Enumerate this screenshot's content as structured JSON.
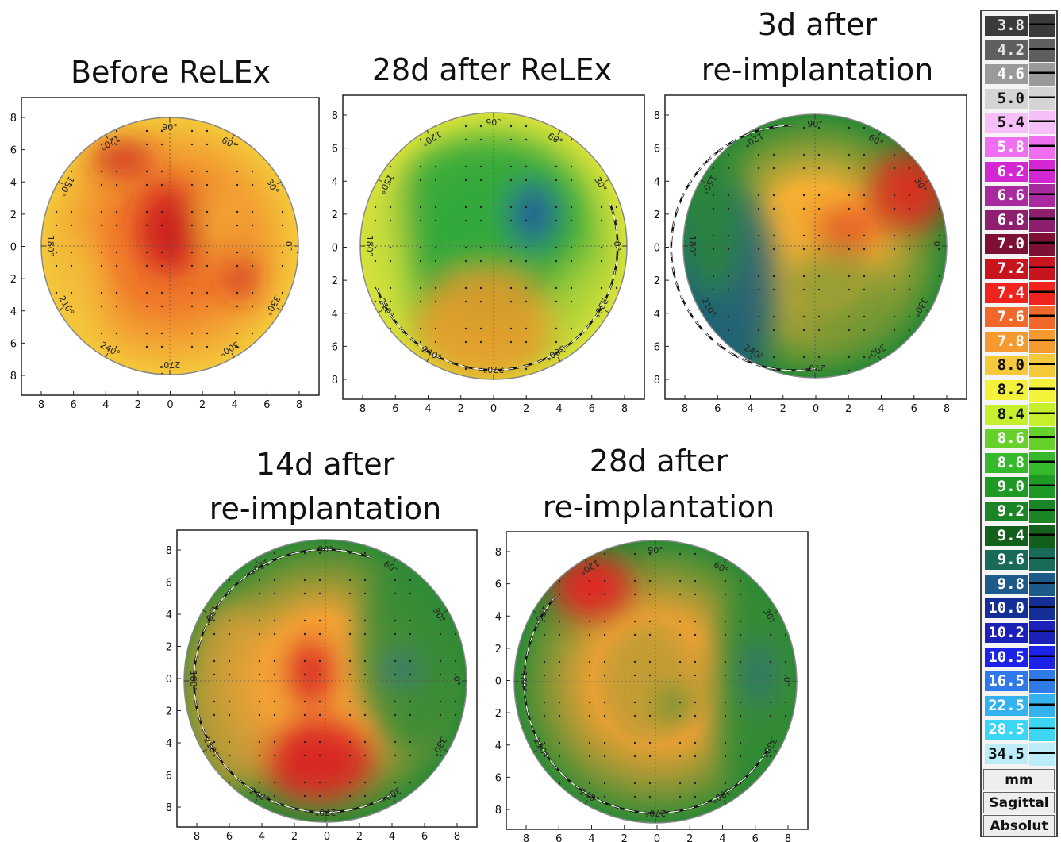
{
  "panels": [
    {
      "id": "p1",
      "title": "Before ReLEx",
      "colors": {
        "bg": "#f07a2a",
        "edge": "#f4c83a",
        "hot": "#cc1f1f",
        "cool": "#f2a23a"
      }
    },
    {
      "id": "p2",
      "title": "28d after ReLEx",
      "colors": {
        "bg": "#35a83a",
        "edge": "#d8e23a",
        "hot": "#f09a2a",
        "cool": "#1f5aa0"
      }
    },
    {
      "id": "p3",
      "title": "3d after re-implantation",
      "title_lines": [
        "3d after",
        "re-implantation"
      ],
      "colors": {
        "bg": "#f4b033",
        "edge": "#2a8a35",
        "hot": "#e02a20",
        "cool": "#1c5e7a"
      }
    },
    {
      "id": "p4",
      "title": "14d after re-implantation",
      "title_lines": [
        "14d after",
        "re-implantation"
      ],
      "colors": {
        "bg": "#f3a235",
        "edge": "#2d8a35",
        "hot": "#d92121",
        "cool": "#2a5e9a"
      }
    },
    {
      "id": "p5",
      "title": "28d after re-implantation",
      "title_lines": [
        "28d after",
        "re-implantation"
      ],
      "colors": {
        "bg": "#f3a235",
        "edge": "#2d8a35",
        "hot": "#e52525",
        "cool": "#2a5e9a"
      }
    }
  ],
  "polar_labels": [
    "90°",
    "60°",
    "30°",
    "0°",
    "330°",
    "300°",
    "270°",
    "240°",
    "210°",
    "180°",
    "150°",
    "120°"
  ],
  "axis_ticks": [
    "8",
    "6",
    "4",
    "2",
    "0",
    "2",
    "4",
    "6",
    "8"
  ],
  "scale": {
    "entries": [
      {
        "v": "3.8",
        "c": "#3a3a3a",
        "t": "#e6e6e6"
      },
      {
        "v": "4.2",
        "c": "#5f5f5f",
        "t": "#e6e6e6"
      },
      {
        "v": "4.6",
        "c": "#9a9a9a",
        "t": "#ffffff"
      },
      {
        "v": "5.0",
        "c": "#d4d4d4",
        "t": "#111111"
      },
      {
        "v": "5.4",
        "c": "#f7bff7",
        "t": "#111111"
      },
      {
        "v": "5.8",
        "c": "#f06ef0",
        "t": "#ffffff"
      },
      {
        "v": "6.2",
        "c": "#d427d4",
        "t": "#ffffff"
      },
      {
        "v": "6.6",
        "c": "#a82a9e",
        "t": "#ffffff"
      },
      {
        "v": "6.8",
        "c": "#8e1f6e",
        "t": "#ffffff"
      },
      {
        "v": "7.0",
        "c": "#7e1133",
        "t": "#ffffff"
      },
      {
        "v": "7.2",
        "c": "#c8141e",
        "t": "#ffffff"
      },
      {
        "v": "7.4",
        "c": "#f0231e",
        "t": "#ffffff"
      },
      {
        "v": "7.6",
        "c": "#f2682a",
        "t": "#ffffff"
      },
      {
        "v": "7.8",
        "c": "#f49a2e",
        "t": "#ffffff"
      },
      {
        "v": "8.0",
        "c": "#f6c93a",
        "t": "#111111"
      },
      {
        "v": "8.2",
        "c": "#f4f23a",
        "t": "#111111"
      },
      {
        "v": "8.4",
        "c": "#c6ef2e",
        "t": "#111111"
      },
      {
        "v": "8.6",
        "c": "#66d12a",
        "t": "#ffffff"
      },
      {
        "v": "8.8",
        "c": "#36b82c",
        "t": "#ffffff"
      },
      {
        "v": "9.0",
        "c": "#1e9a24",
        "t": "#ffffff"
      },
      {
        "v": "9.2",
        "c": "#1b8424",
        "t": "#ffffff"
      },
      {
        "v": "9.4",
        "c": "#135f1c",
        "t": "#ffffff"
      },
      {
        "v": "9.6",
        "c": "#1a6a5a",
        "t": "#ffffff"
      },
      {
        "v": "9.8",
        "c": "#1c5a8a",
        "t": "#ffffff"
      },
      {
        "v": "10.0",
        "c": "#142e98",
        "t": "#ffffff"
      },
      {
        "v": "10.2",
        "c": "#1a20b8",
        "t": "#ffffff"
      },
      {
        "v": "10.5",
        "c": "#1d22e8",
        "t": "#ffffff"
      },
      {
        "v": "16.5",
        "c": "#2f7ae8",
        "t": "#ffffff"
      },
      {
        "v": "22.5",
        "c": "#34b2f0",
        "t": "#ffffff"
      },
      {
        "v": "28.5",
        "c": "#3cd6f4",
        "t": "#ffffff"
      },
      {
        "v": "34.5",
        "c": "#bcecf8",
        "t": "#111111"
      }
    ],
    "unit": "mm",
    "mode": "Sagittal",
    "ref": "Absolut"
  }
}
